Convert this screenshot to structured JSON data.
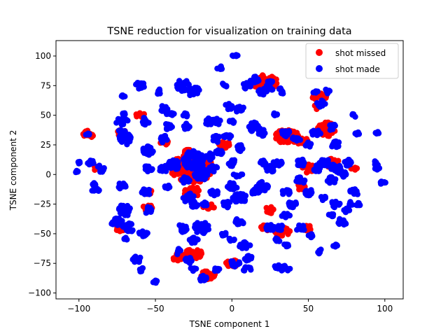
{
  "chart_data": {
    "type": "scatter",
    "title": "TSNE reduction for visualization on training data",
    "xlabel": "TSNE component 1",
    "ylabel": "TSNE component 2",
    "xlim": [
      -115,
      112
    ],
    "ylim": [
      -105,
      113
    ],
    "xticks": [
      -100,
      -50,
      0,
      50,
      100
    ],
    "yticks": [
      -100,
      -75,
      -50,
      -25,
      0,
      25,
      50,
      75,
      100
    ],
    "grid": false,
    "legend_position": "top-right",
    "series": [
      {
        "name": "shot missed",
        "color": "#ff0000",
        "clusters": [
          [
            -94,
            34,
            4,
            3
          ],
          [
            -72,
            35,
            3,
            3
          ],
          [
            -60,
            50,
            3,
            2
          ],
          [
            -44,
            28,
            3,
            3
          ],
          [
            -29,
            20,
            3,
            2
          ],
          [
            -26,
            5,
            14,
            12
          ],
          [
            -5,
            25,
            4,
            3
          ],
          [
            17,
            77,
            5,
            4
          ],
          [
            22,
            78,
            8,
            6
          ],
          [
            46,
            28,
            4,
            3
          ],
          [
            55,
            57,
            2,
            2
          ],
          [
            57,
            66,
            5,
            3
          ],
          [
            62,
            38,
            6,
            6
          ],
          [
            36,
            32,
            8,
            6
          ],
          [
            -15,
            -27,
            4,
            2
          ],
          [
            -26,
            -15,
            5,
            5
          ],
          [
            -55,
            -15,
            3,
            2
          ],
          [
            -55,
            -28,
            3,
            3
          ],
          [
            -35,
            -70,
            4,
            4
          ],
          [
            -25,
            -67,
            6,
            4
          ],
          [
            -16,
            -85,
            5,
            4
          ],
          [
            22,
            -45,
            3,
            3
          ],
          [
            25,
            -30,
            3,
            3
          ],
          [
            50,
            -45,
            3,
            3
          ],
          [
            50,
            5,
            4,
            4
          ],
          [
            65,
            10,
            5,
            4
          ],
          [
            80,
            5,
            2,
            2
          ],
          [
            -73,
            -45,
            3,
            3
          ],
          [
            33,
            -48,
            5,
            4
          ],
          [
            0,
            -75,
            4,
            3
          ],
          [
            45,
            -10,
            3,
            3
          ],
          [
            -90,
            5,
            2,
            2
          ]
        ]
      },
      {
        "name": "shot made",
        "color": "#0000ff",
        "clusters": [
          [
            -101,
            2,
            1.5,
            1.5
          ],
          [
            -94,
            34,
            1.5,
            1.5
          ],
          [
            -92,
            10,
            2.5,
            2
          ],
          [
            -85,
            5,
            3,
            3
          ],
          [
            -100,
            10,
            1,
            1
          ],
          [
            -90,
            -8,
            1.5,
            1.5
          ],
          [
            -89,
            -13,
            2.5,
            2.5
          ],
          [
            -72,
            35,
            3.5,
            3
          ],
          [
            -71,
            66,
            1.5,
            1.5
          ],
          [
            -70,
            30,
            4,
            5
          ],
          [
            -70,
            50,
            2,
            2
          ],
          [
            -72,
            45,
            4,
            3
          ],
          [
            -72,
            -10,
            3,
            3
          ],
          [
            -70,
            -30,
            4,
            5
          ],
          [
            -75,
            -40,
            4,
            4
          ],
          [
            -70,
            -55,
            2,
            2
          ],
          [
            -68,
            -45,
            4,
            4
          ],
          [
            -60,
            75,
            3,
            3
          ],
          [
            -57,
            45,
            3,
            3
          ],
          [
            -55,
            20,
            4,
            4
          ],
          [
            -55,
            5,
            3,
            3
          ],
          [
            -56,
            -15,
            3,
            3
          ],
          [
            -55,
            -30,
            3,
            3
          ],
          [
            -58,
            -50,
            3,
            3
          ],
          [
            -62,
            -72,
            3,
            3
          ],
          [
            -60,
            -80,
            2,
            2
          ],
          [
            -50,
            -90,
            2,
            1.5
          ],
          [
            -48,
            70,
            2,
            2
          ],
          [
            -45,
            55,
            3,
            3
          ],
          [
            -45,
            30,
            3,
            3
          ],
          [
            -45,
            5,
            3,
            3
          ],
          [
            -42,
            -10,
            2,
            2
          ],
          [
            -42,
            40,
            3,
            3
          ],
          [
            -40,
            50,
            3,
            2
          ],
          [
            -38,
            8,
            4,
            4
          ],
          [
            -32,
            75,
            4,
            5
          ],
          [
            -25,
            70,
            4,
            4
          ],
          [
            -30,
            50,
            2,
            2
          ],
          [
            -30,
            40,
            3,
            3
          ],
          [
            -25,
            12,
            7,
            8
          ],
          [
            -20,
            0,
            5,
            5
          ],
          [
            -30,
            -5,
            3,
            3
          ],
          [
            -28,
            -20,
            4,
            4
          ],
          [
            -25,
            -25,
            3,
            3
          ],
          [
            -32,
            -45,
            3,
            4
          ],
          [
            -20,
            -45,
            5,
            5
          ],
          [
            -25,
            -55,
            3,
            3
          ],
          [
            -35,
            -65,
            2,
            3
          ],
          [
            -28,
            -72,
            3,
            3
          ],
          [
            -25,
            -80,
            2,
            2
          ],
          [
            -18,
            -88,
            3,
            3
          ],
          [
            -10,
            -80,
            2,
            2
          ],
          [
            -15,
            45,
            3,
            3
          ],
          [
            -10,
            30,
            3,
            3
          ],
          [
            -10,
            45,
            3,
            3
          ],
          [
            -8,
            20,
            3,
            3
          ],
          [
            -15,
            15,
            3,
            3
          ],
          [
            -12,
            5,
            3,
            3
          ],
          [
            -12,
            -15,
            3,
            3
          ],
          [
            -18,
            -25,
            2,
            2
          ],
          [
            -8,
            90,
            2,
            2
          ],
          [
            -5,
            75,
            2,
            2
          ],
          [
            -2,
            58,
            3,
            3
          ],
          [
            5,
            55,
            3,
            3
          ],
          [
            0,
            45,
            2,
            2
          ],
          [
            -3,
            32,
            3,
            3
          ],
          [
            5,
            22,
            3,
            3
          ],
          [
            0,
            10,
            3,
            3
          ],
          [
            4,
            0,
            3,
            2
          ],
          [
            0,
            -10,
            4,
            3
          ],
          [
            5,
            -20,
            5,
            4
          ],
          [
            -3,
            -25,
            3,
            3
          ],
          [
            5,
            -40,
            3,
            3
          ],
          [
            -5,
            -50,
            2,
            2
          ],
          [
            0,
            -55,
            2,
            2
          ],
          [
            8,
            -60,
            4,
            3
          ],
          [
            2,
            -75,
            3,
            3
          ],
          [
            10,
            -80,
            3,
            2
          ],
          [
            10,
            -70,
            3,
            3
          ],
          [
            2,
            100,
            2,
            1.5
          ],
          [
            10,
            75,
            3,
            3
          ],
          [
            15,
            80,
            3,
            3
          ],
          [
            20,
            70,
            3,
            3
          ],
          [
            25,
            75,
            3,
            4
          ],
          [
            32,
            70,
            2,
            3
          ],
          [
            15,
            40,
            4,
            4
          ],
          [
            20,
            35,
            3,
            3
          ],
          [
            25,
            5,
            3,
            3
          ],
          [
            30,
            10,
            3,
            3
          ],
          [
            20,
            10,
            3,
            2
          ],
          [
            20,
            -10,
            4,
            4
          ],
          [
            15,
            -15,
            3,
            3
          ],
          [
            28,
            50,
            2,
            2
          ],
          [
            35,
            35,
            3,
            3
          ],
          [
            42,
            30,
            3,
            2
          ],
          [
            35,
            -15,
            3,
            3
          ],
          [
            40,
            -25,
            3,
            3
          ],
          [
            35,
            -35,
            3,
            2
          ],
          [
            25,
            -45,
            3,
            3
          ],
          [
            32,
            -45,
            3,
            2
          ],
          [
            30,
            -55,
            2,
            2
          ],
          [
            35,
            -60,
            2,
            2
          ],
          [
            30,
            -78,
            2,
            2
          ],
          [
            35,
            -80,
            3,
            3
          ],
          [
            45,
            -5,
            3,
            3
          ],
          [
            45,
            -45,
            3,
            3
          ],
          [
            52,
            -52,
            2,
            2
          ],
          [
            58,
            -65,
            2,
            2
          ],
          [
            50,
            -15,
            3,
            3
          ],
          [
            45,
            10,
            3,
            3
          ],
          [
            55,
            5,
            3,
            3
          ],
          [
            50,
            25,
            2,
            2
          ],
          [
            55,
            35,
            3,
            3
          ],
          [
            58,
            60,
            3,
            3
          ],
          [
            55,
            70,
            2,
            2
          ],
          [
            62,
            70,
            2,
            2
          ],
          [
            65,
            40,
            3,
            3
          ],
          [
            68,
            25,
            3,
            3
          ],
          [
            60,
            10,
            4,
            4
          ],
          [
            68,
            5,
            4,
            4
          ],
          [
            75,
            10,
            3,
            3
          ],
          [
            65,
            -5,
            3,
            3
          ],
          [
            72,
            0,
            3,
            3
          ],
          [
            60,
            -20,
            2,
            2
          ],
          [
            68,
            -25,
            3,
            3
          ],
          [
            65,
            -35,
            2,
            2
          ],
          [
            72,
            -40,
            3,
            3
          ],
          [
            75,
            -30,
            2,
            2
          ],
          [
            68,
            -60,
            2,
            1.5
          ],
          [
            80,
            -15,
            3,
            3
          ],
          [
            78,
            -25,
            2,
            2
          ],
          [
            82,
            -25,
            2,
            2
          ],
          [
            82,
            35,
            1.5,
            1.5
          ],
          [
            80,
            50,
            2,
            1.5
          ],
          [
            95,
            35,
            1.5,
            1.5
          ],
          [
            95,
            10,
            2,
            3
          ],
          [
            95,
            5,
            1.5,
            1.5
          ],
          [
            99,
            -7,
            2,
            2
          ]
        ]
      }
    ]
  }
}
